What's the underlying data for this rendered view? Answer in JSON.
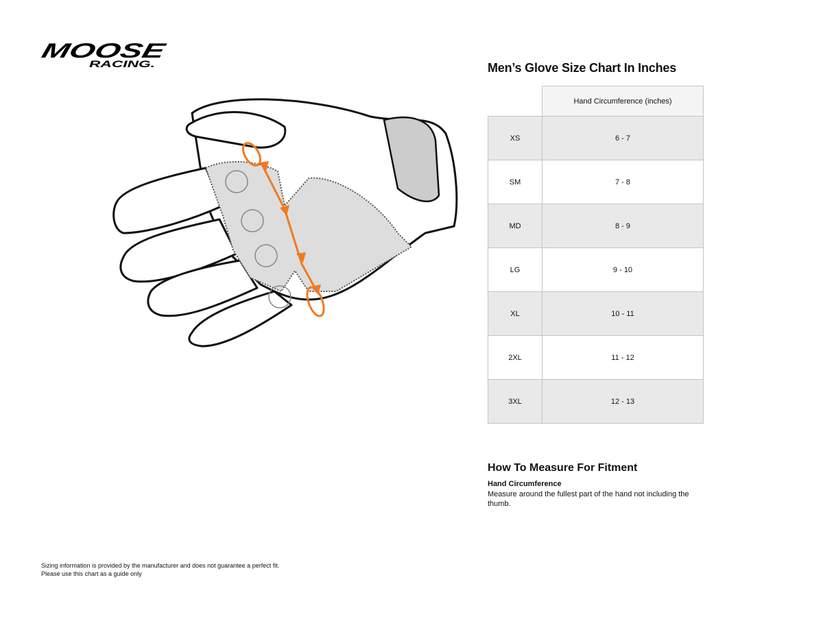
{
  "logo": {
    "brand": "MOOSE",
    "sub": "RACING"
  },
  "colors": {
    "accent": "#f07a23",
    "row_shaded": "#e9e9e9",
    "header_bg": "#f3f4f3"
  },
  "chart_title": "Men’s Glove Size Chart In Inches",
  "table": {
    "header": "Hand Circumference (inches)",
    "rows": [
      {
        "size": "XS",
        "circumference": "6 - 7"
      },
      {
        "size": "SM",
        "circumference": "7 - 8"
      },
      {
        "size": "MD",
        "circumference": "8 - 9"
      },
      {
        "size": "LG",
        "circumference": "9 - 10"
      },
      {
        "size": "XL",
        "circumference": "10 - 11"
      },
      {
        "size": "2XL",
        "circumference": "11 - 12"
      },
      {
        "size": "3XL",
        "circumference": "12 - 13"
      }
    ]
  },
  "measure": {
    "title": "How To Measure For Fitment",
    "subtitle": "Hand Circumference",
    "text": "Measure around the fullest part of the hand not including the thumb."
  },
  "disclaimer": {
    "line1": "Sizing information is provided by the manufacturer and does not guarantee a perfect fit.",
    "line2": "Please use this chart as a guide only"
  }
}
